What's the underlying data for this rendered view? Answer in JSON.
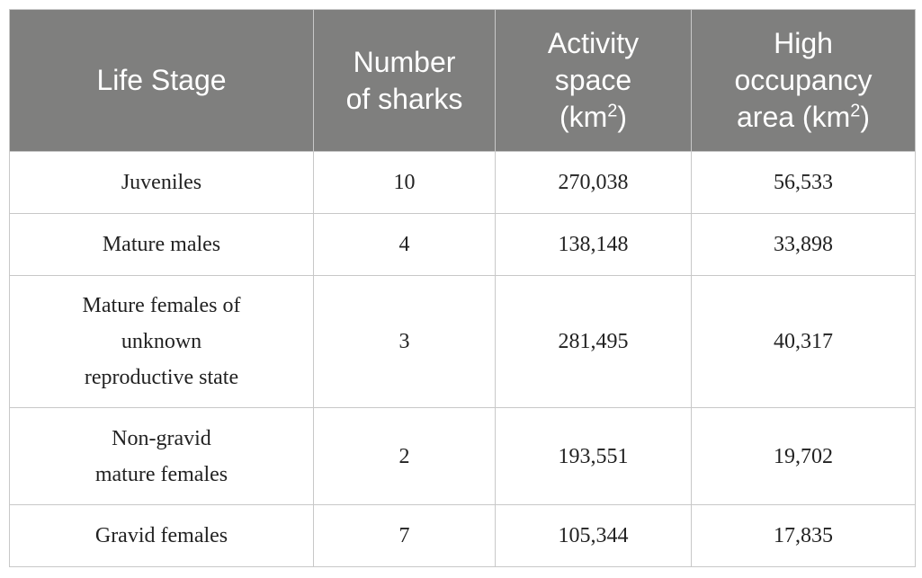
{
  "table": {
    "headers": {
      "life_stage": "Life Stage",
      "number_line1": "Number",
      "number_line2": "of sharks",
      "activity_line1": "Activity",
      "activity_line2": "space",
      "activity_line3": "(km",
      "activity_sup": "2",
      "activity_close": ")",
      "high_line1": "High",
      "high_line2": "occupancy",
      "high_line3": "area (km",
      "high_sup": "2",
      "high_close": ")"
    },
    "rows": [
      {
        "life_stage_lines": [
          "Juveniles"
        ],
        "number": "10",
        "activity": "270,038",
        "high": "56,533"
      },
      {
        "life_stage_lines": [
          "Mature males"
        ],
        "number": "4",
        "activity": "138,148",
        "high": "33,898"
      },
      {
        "life_stage_lines": [
          "Mature females of",
          "unknown",
          "reproductive state"
        ],
        "number": "3",
        "activity": "281,495",
        "high": "40,317"
      },
      {
        "life_stage_lines": [
          "Non-gravid",
          "mature females"
        ],
        "number": "2",
        "activity": "193,551",
        "high": "19,702"
      },
      {
        "life_stage_lines": [
          "Gravid females"
        ],
        "number": "7",
        "activity": "105,344",
        "high": "17,835"
      }
    ]
  }
}
